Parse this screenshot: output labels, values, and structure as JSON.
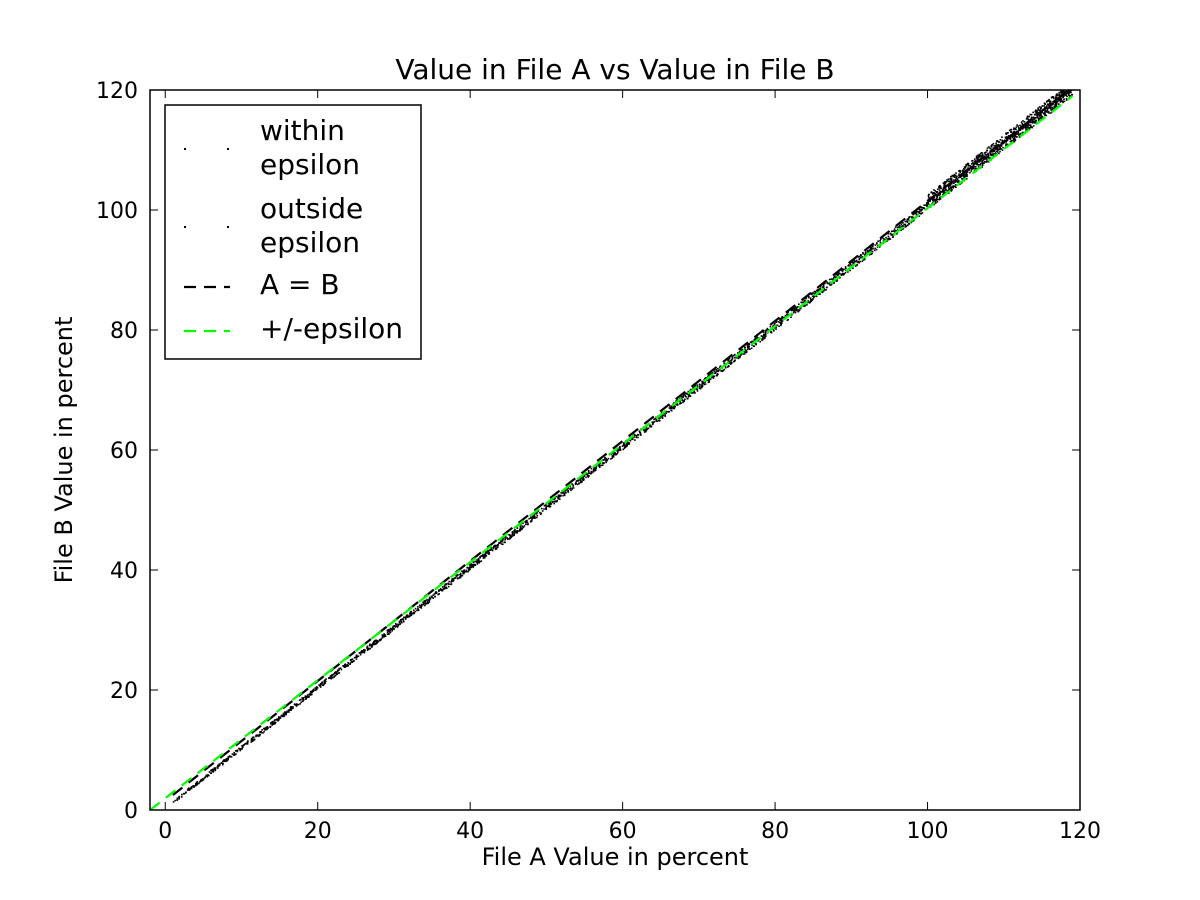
{
  "chart_data": {
    "type": "scatter",
    "title": "Value in File A vs Value in File B",
    "xlabel": "File A Value in percent",
    "ylabel": "File B Value in percent",
    "xlim": [
      -2,
      120
    ],
    "ylim": [
      0,
      120
    ],
    "xticks": [
      0,
      20,
      40,
      60,
      80,
      100,
      120
    ],
    "yticks": [
      0,
      20,
      40,
      60,
      80,
      100,
      120
    ],
    "grid": false,
    "legend": {
      "placement": "top-left",
      "entries": [
        {
          "label_lines": [
            "within",
            "epsilon"
          ],
          "style": "points",
          "color": "#000000"
        },
        {
          "label_lines": [
            "outside",
            "epsilon"
          ],
          "style": "points",
          "color": "#000000"
        },
        {
          "label_lines": [
            "A = B"
          ],
          "style": "dashed-line",
          "color": "#000000"
        },
        {
          "label_lines": [
            "+/-epsilon"
          ],
          "style": "dashed-line",
          "color": "#00ff00"
        }
      ]
    },
    "series": [
      {
        "name": "within epsilon",
        "kind": "scatter",
        "color": "#000000",
        "description_points": {
          "x_range": [
            1,
            119
          ],
          "y_equals_x_plus_offset": [
            0,
            1.6
          ]
        }
      },
      {
        "name": "outside epsilon",
        "kind": "scatter",
        "color": "#000000",
        "description_points": {
          "x_range": [
            100,
            119
          ],
          "y_equals_x_plus_offset": [
            1.0,
            2.5
          ]
        }
      },
      {
        "name": "A = B",
        "kind": "line",
        "style": "dashed",
        "color": "#000000",
        "x": [
          1,
          119
        ],
        "y": [
          2.5,
          120.5
        ]
      },
      {
        "name": "+/-epsilon",
        "kind": "line",
        "style": "dashed",
        "color": "#00ff00",
        "x": [
          -2,
          119
        ],
        "y": [
          0,
          119
        ]
      }
    ]
  }
}
